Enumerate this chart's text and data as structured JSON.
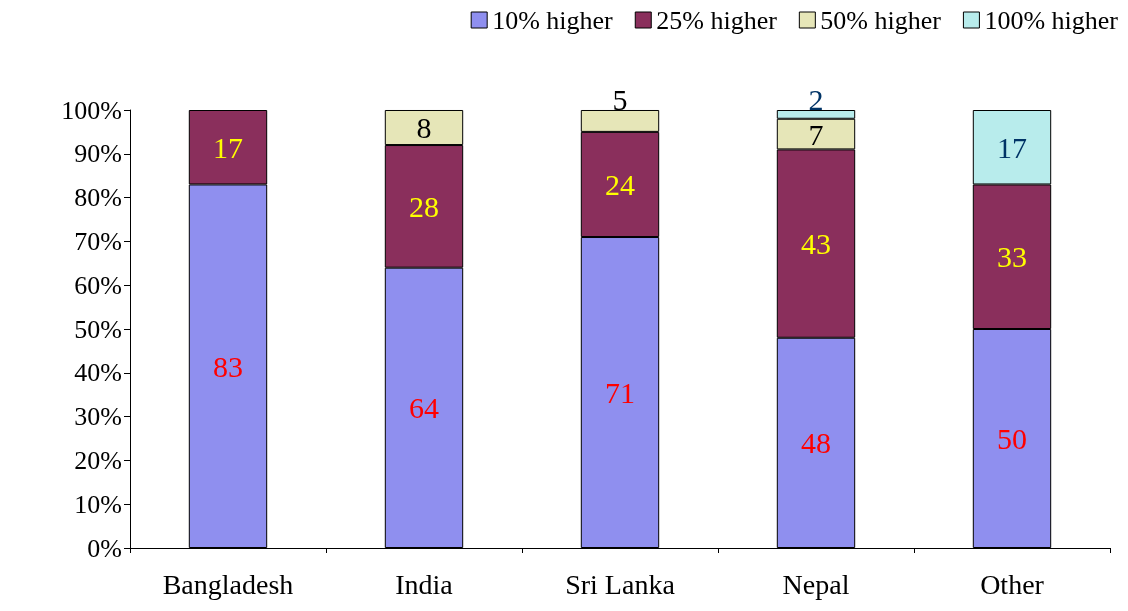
{
  "chart_data": {
    "type": "bar",
    "stacked": true,
    "categories": [
      "Bangladesh",
      "India",
      "Sri Lanka",
      "Nepal",
      "Other"
    ],
    "series": [
      {
        "name": "10% higher",
        "color": "#8f8fef",
        "values": [
          83,
          64,
          71,
          48,
          50
        ],
        "value_labels": [
          "83",
          "64",
          "71",
          "48",
          "50"
        ]
      },
      {
        "name": "25% higher",
        "color": "#8a2f5c",
        "values": [
          17,
          28,
          24,
          43,
          33
        ],
        "value_labels": [
          "17",
          "28",
          "24",
          "43",
          "33"
        ]
      },
      {
        "name": "50% higher",
        "color": "#e6e6b8",
        "values": [
          0,
          8,
          5,
          7,
          0
        ],
        "value_labels": [
          null,
          "8",
          "5",
          "7",
          null
        ]
      },
      {
        "name": "100% higher",
        "color": "#b8ecec",
        "values": [
          0,
          0,
          0,
          2,
          17
        ],
        "value_labels": [
          null,
          null,
          null,
          "2",
          "17"
        ]
      }
    ],
    "ylim": [
      0,
      100
    ],
    "yticks": [
      {
        "value": 0,
        "label": "0%"
      },
      {
        "value": 10,
        "label": "10%"
      },
      {
        "value": 20,
        "label": "20%"
      },
      {
        "value": 30,
        "label": "30%"
      },
      {
        "value": 40,
        "label": "40%"
      },
      {
        "value": 50,
        "label": "50%"
      },
      {
        "value": 60,
        "label": "60%"
      },
      {
        "value": 70,
        "label": "70%"
      },
      {
        "value": 80,
        "label": "80%"
      },
      {
        "value": 90,
        "label": "90%"
      },
      {
        "value": 100,
        "label": "100%"
      }
    ],
    "grid": false,
    "legend": "top"
  }
}
